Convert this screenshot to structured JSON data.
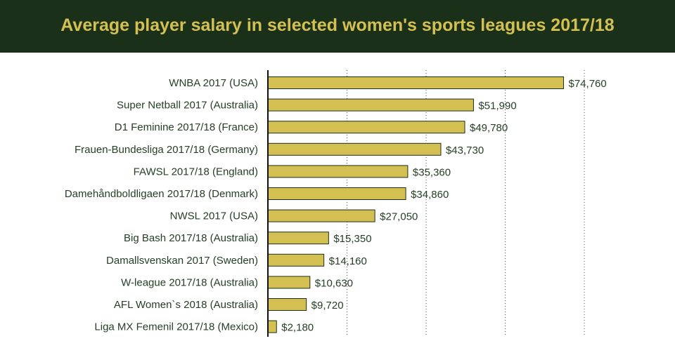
{
  "title": "Average player salary in selected women's sports leagues 2017/18",
  "colors": {
    "header_bg": "#1b3018",
    "title_text": "#d4c052",
    "bar_fill": "#d4c052",
    "bar_stroke": "#1b3018",
    "label_text": "#263f25",
    "axis": "#111111",
    "grid": "#555555"
  },
  "chart_data": {
    "type": "bar",
    "orientation": "horizontal",
    "title": "Average player salary in selected women's sports leagues 2017/18",
    "xlabel": "",
    "ylabel": "",
    "xlim": [
      0,
      80000
    ],
    "grid": "vertical dotted",
    "categories": [
      "WNBA 2017 (USA)",
      "Super Netball 2017 (Australia)",
      "D1 Feminine 2017/18 (France)",
      "Frauen-Bundesliga 2017/18 (Germany)",
      "FAWSL 2017/18 (England)",
      "Damehåndboldligaen 2017/18 (Denmark)",
      "NWSL 2017 (USA)",
      "Big Bash 2017/18 (Australia)",
      "Damallsvenskan 2017 (Sweden)",
      "W-league 2017/18 (Australia)",
      "AFL Women`s 2018 (Australia)",
      "Liga MX Femenil 2017/18 (Mexico)"
    ],
    "values": [
      74760,
      51990,
      49780,
      43730,
      35360,
      34860,
      27050,
      15350,
      14160,
      10630,
      9720,
      2180
    ],
    "value_labels": [
      "$74,760",
      "$51,990",
      "$49,780",
      "$43,730",
      "$35,360",
      "$34,860",
      "$27,050",
      "$15,350",
      "$14,160",
      "$10,630",
      "$9,720",
      "$2,180"
    ]
  }
}
